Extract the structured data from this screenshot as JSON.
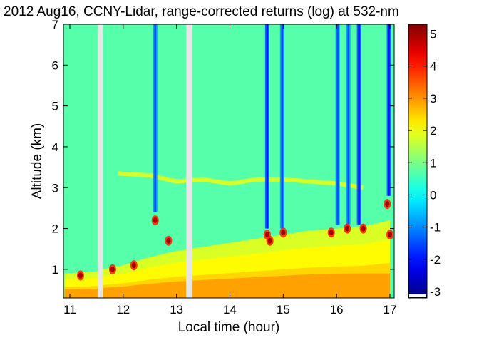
{
  "chart_data": {
    "type": "heatmap",
    "title": "2012 Aug16, CCNY-Lidar, range-corrected returns (log) at 532-nm",
    "xlabel": "Local time (hour)",
    "ylabel": "Altitude (km)",
    "xlim": [
      10.88,
      17.08
    ],
    "ylim": [
      0.3,
      7.0
    ],
    "x_ticks": [
      11,
      12,
      13,
      14,
      15,
      16,
      17
    ],
    "y_ticks": [
      1,
      2,
      3,
      4,
      5,
      6,
      7
    ],
    "colorbar": {
      "range": [
        -3.2,
        5.3
      ],
      "ticks": [
        -3,
        -2,
        -1,
        0,
        1,
        2,
        3,
        4,
        5
      ],
      "colormap": "jet"
    },
    "background_value": 0.7,
    "data_gaps": [
      [
        11.52,
        11.62
      ],
      [
        13.18,
        13.3
      ]
    ],
    "boundary_layer": [
      {
        "x": 10.9,
        "y": 0.9
      },
      {
        "x": 11.5,
        "y": 0.95
      },
      {
        "x": 11.6,
        "y": 1.0
      },
      {
        "x": 12.0,
        "y": 1.1
      },
      {
        "x": 12.5,
        "y": 1.3
      },
      {
        "x": 13.0,
        "y": 1.45
      },
      {
        "x": 13.5,
        "y": 1.55
      },
      {
        "x": 14.0,
        "y": 1.65
      },
      {
        "x": 14.5,
        "y": 1.75
      },
      {
        "x": 15.0,
        "y": 1.85
      },
      {
        "x": 15.5,
        "y": 1.95
      },
      {
        "x": 16.0,
        "y": 2.0
      },
      {
        "x": 16.5,
        "y": 2.05
      },
      {
        "x": 17.0,
        "y": 2.2
      }
    ],
    "aerosol_layer": [
      {
        "x": 11.9,
        "y": 3.35
      },
      {
        "x": 12.5,
        "y": 3.3
      },
      {
        "x": 13.0,
        "y": 3.15
      },
      {
        "x": 13.5,
        "y": 3.2
      },
      {
        "x": 14.0,
        "y": 3.1
      },
      {
        "x": 14.5,
        "y": 3.2
      },
      {
        "x": 15.0,
        "y": 3.2
      },
      {
        "x": 15.5,
        "y": 3.15
      },
      {
        "x": 16.0,
        "y": 3.1
      },
      {
        "x": 16.5,
        "y": 3.0
      }
    ],
    "clouds": [
      {
        "x": 11.2,
        "y": 0.85
      },
      {
        "x": 11.8,
        "y": 1.0
      },
      {
        "x": 12.2,
        "y": 1.1
      },
      {
        "x": 12.6,
        "y": 2.2
      },
      {
        "x": 12.85,
        "y": 1.7
      },
      {
        "x": 14.7,
        "y": 1.85
      },
      {
        "x": 14.75,
        "y": 1.7
      },
      {
        "x": 15.0,
        "y": 1.9
      },
      {
        "x": 15.9,
        "y": 1.9
      },
      {
        "x": 16.2,
        "y": 2.0
      },
      {
        "x": 16.5,
        "y": 2.0
      },
      {
        "x": 16.95,
        "y": 2.6
      },
      {
        "x": 17.0,
        "y": 1.85
      }
    ],
    "attenuated_columns": [
      {
        "x": 12.6,
        "y_bottom": 2.4,
        "value": -1.5
      },
      {
        "x": 14.7,
        "y_bottom": 2.0,
        "value": -2.0
      },
      {
        "x": 14.98,
        "y_bottom": 2.0,
        "value": -1.5
      },
      {
        "x": 16.02,
        "y_bottom": 2.1,
        "value": -1.5
      },
      {
        "x": 16.22,
        "y_bottom": 2.1,
        "value": -1.5
      },
      {
        "x": 16.42,
        "y_bottom": 2.1,
        "value": -2.0
      },
      {
        "x": 16.98,
        "y_bottom": 2.8,
        "value": -2.0
      }
    ]
  }
}
